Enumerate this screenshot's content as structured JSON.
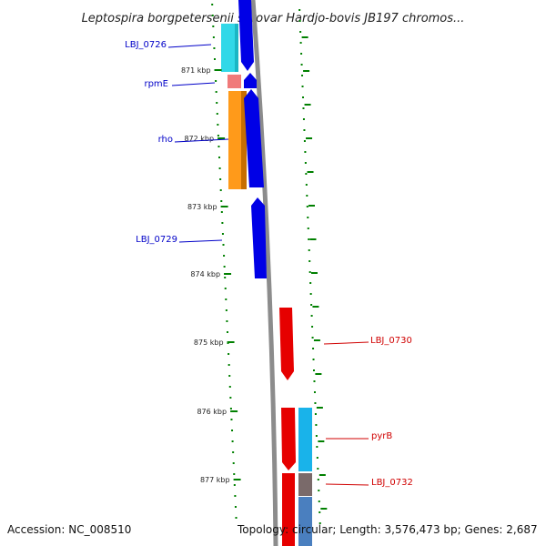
{
  "header": {
    "title": "Leptospira borgpetersenii serovar Hardjo-bovis JB197 chromos..."
  },
  "footer": {
    "accession": "Accession: NC_008510",
    "topology": "Topology: circular; Length: 3,576,473 bp; Genes: 2,687"
  },
  "colors": {
    "backbone": "#8c8c8c",
    "forward_strand_gene": "#0000e6",
    "reverse_strand_gene": "#e60000",
    "tick": "#008000",
    "forward_label": "#0000c8",
    "reverse_label": "#d00000"
  },
  "ticks": [
    {
      "label": "871 kbp"
    },
    {
      "label": "872 kbp"
    },
    {
      "label": "873 kbp"
    },
    {
      "label": "874 kbp"
    },
    {
      "label": "875 kbp"
    },
    {
      "label": "876 kbp"
    },
    {
      "label": "877 kbp"
    }
  ],
  "genes": [
    {
      "name": "LBJ_0726",
      "strand": "forward",
      "label_color": "#0000c8"
    },
    {
      "name": "rpmE",
      "strand": "forward",
      "label_color": "#0000c8"
    },
    {
      "name": "rho",
      "strand": "forward",
      "label_color": "#0000c8"
    },
    {
      "name": "LBJ_0729",
      "strand": "forward",
      "label_color": "#0000c8"
    },
    {
      "name": "LBJ_0730",
      "strand": "reverse",
      "label_color": "#d00000"
    },
    {
      "name": "pyrB",
      "strand": "reverse",
      "label_color": "#d00000"
    },
    {
      "name": "LBJ_0732",
      "strand": "reverse",
      "label_color": "#d00000"
    }
  ]
}
